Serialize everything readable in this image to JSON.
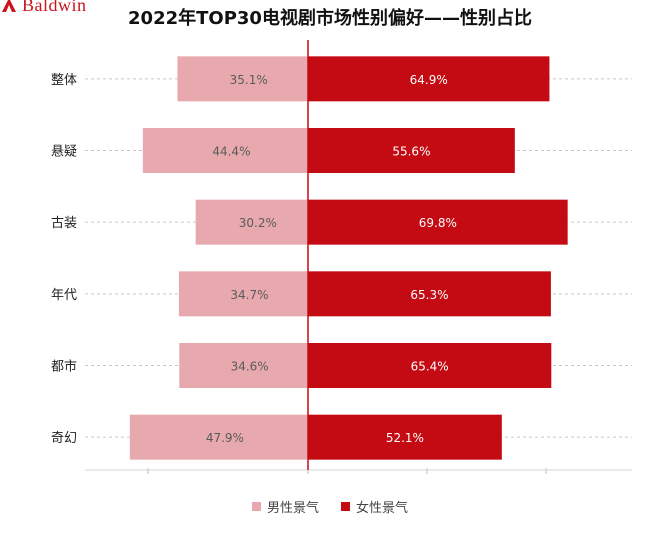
{
  "brand": {
    "name": "Baldwin",
    "accent": "#c9141c"
  },
  "chart_data": {
    "type": "bar",
    "orientation": "horizontal-diverging",
    "title": "2022年TOP30电视剧市场性别偏好——性别占比",
    "categories": [
      "整体",
      "悬疑",
      "古装",
      "年代",
      "都市",
      "奇幻"
    ],
    "series": [
      {
        "name": "男性景气",
        "color": "#e8a9ae",
        "values": [
          35.1,
          44.4,
          30.2,
          34.7,
          34.6,
          47.9
        ]
      },
      {
        "name": "女性景气",
        "color": "#c40b13",
        "values": [
          64.9,
          55.6,
          69.8,
          65.3,
          65.4,
          52.1
        ]
      }
    ],
    "value_labels": {
      "男性景气": [
        "35.1%",
        "44.4%",
        "30.2%",
        "34.7%",
        "34.6%",
        "47.9%"
      ],
      "女性景气": [
        "64.9%",
        "55.6%",
        "69.8%",
        "65.3%",
        "65.4%",
        "52.1%"
      ]
    },
    "unit": "%",
    "xlim": [
      -50,
      70
    ],
    "grid": true,
    "legend_position": "bottom"
  }
}
